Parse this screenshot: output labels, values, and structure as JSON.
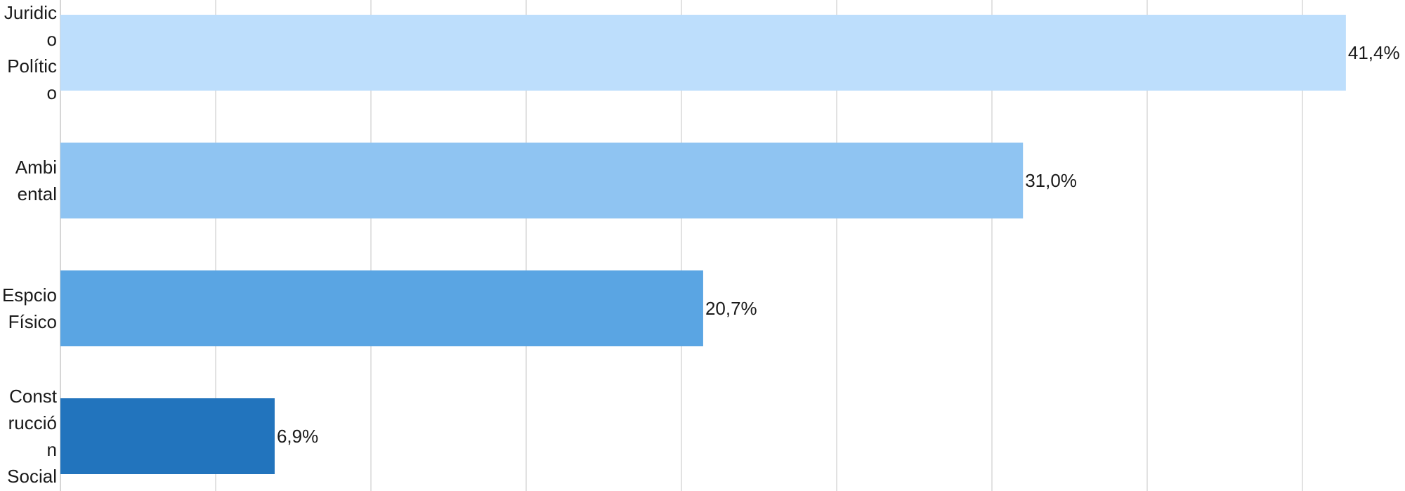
{
  "chart_data": {
    "type": "bar",
    "orientation": "horizontal",
    "title": "",
    "xlabel": "",
    "ylabel": "",
    "categories": [
      [
        "Juridic",
        "o",
        "Polític",
        "o"
      ],
      [
        "Ambi",
        "ental"
      ],
      [
        "Espcio",
        "Físico"
      ],
      [
        "Const",
        "rucció",
        "n",
        "Social"
      ]
    ],
    "values": [
      41.4,
      31.0,
      20.7,
      6.9
    ],
    "value_labels": [
      "41,4%",
      "31,0%",
      "20,7%",
      "6,9%"
    ],
    "colors": [
      "#bddefc",
      "#8fc4f2",
      "#5aa5e3",
      "#2274bd"
    ],
    "xlim": [
      0,
      45
    ],
    "grid_step": 5,
    "grid": true,
    "legend": "none"
  }
}
